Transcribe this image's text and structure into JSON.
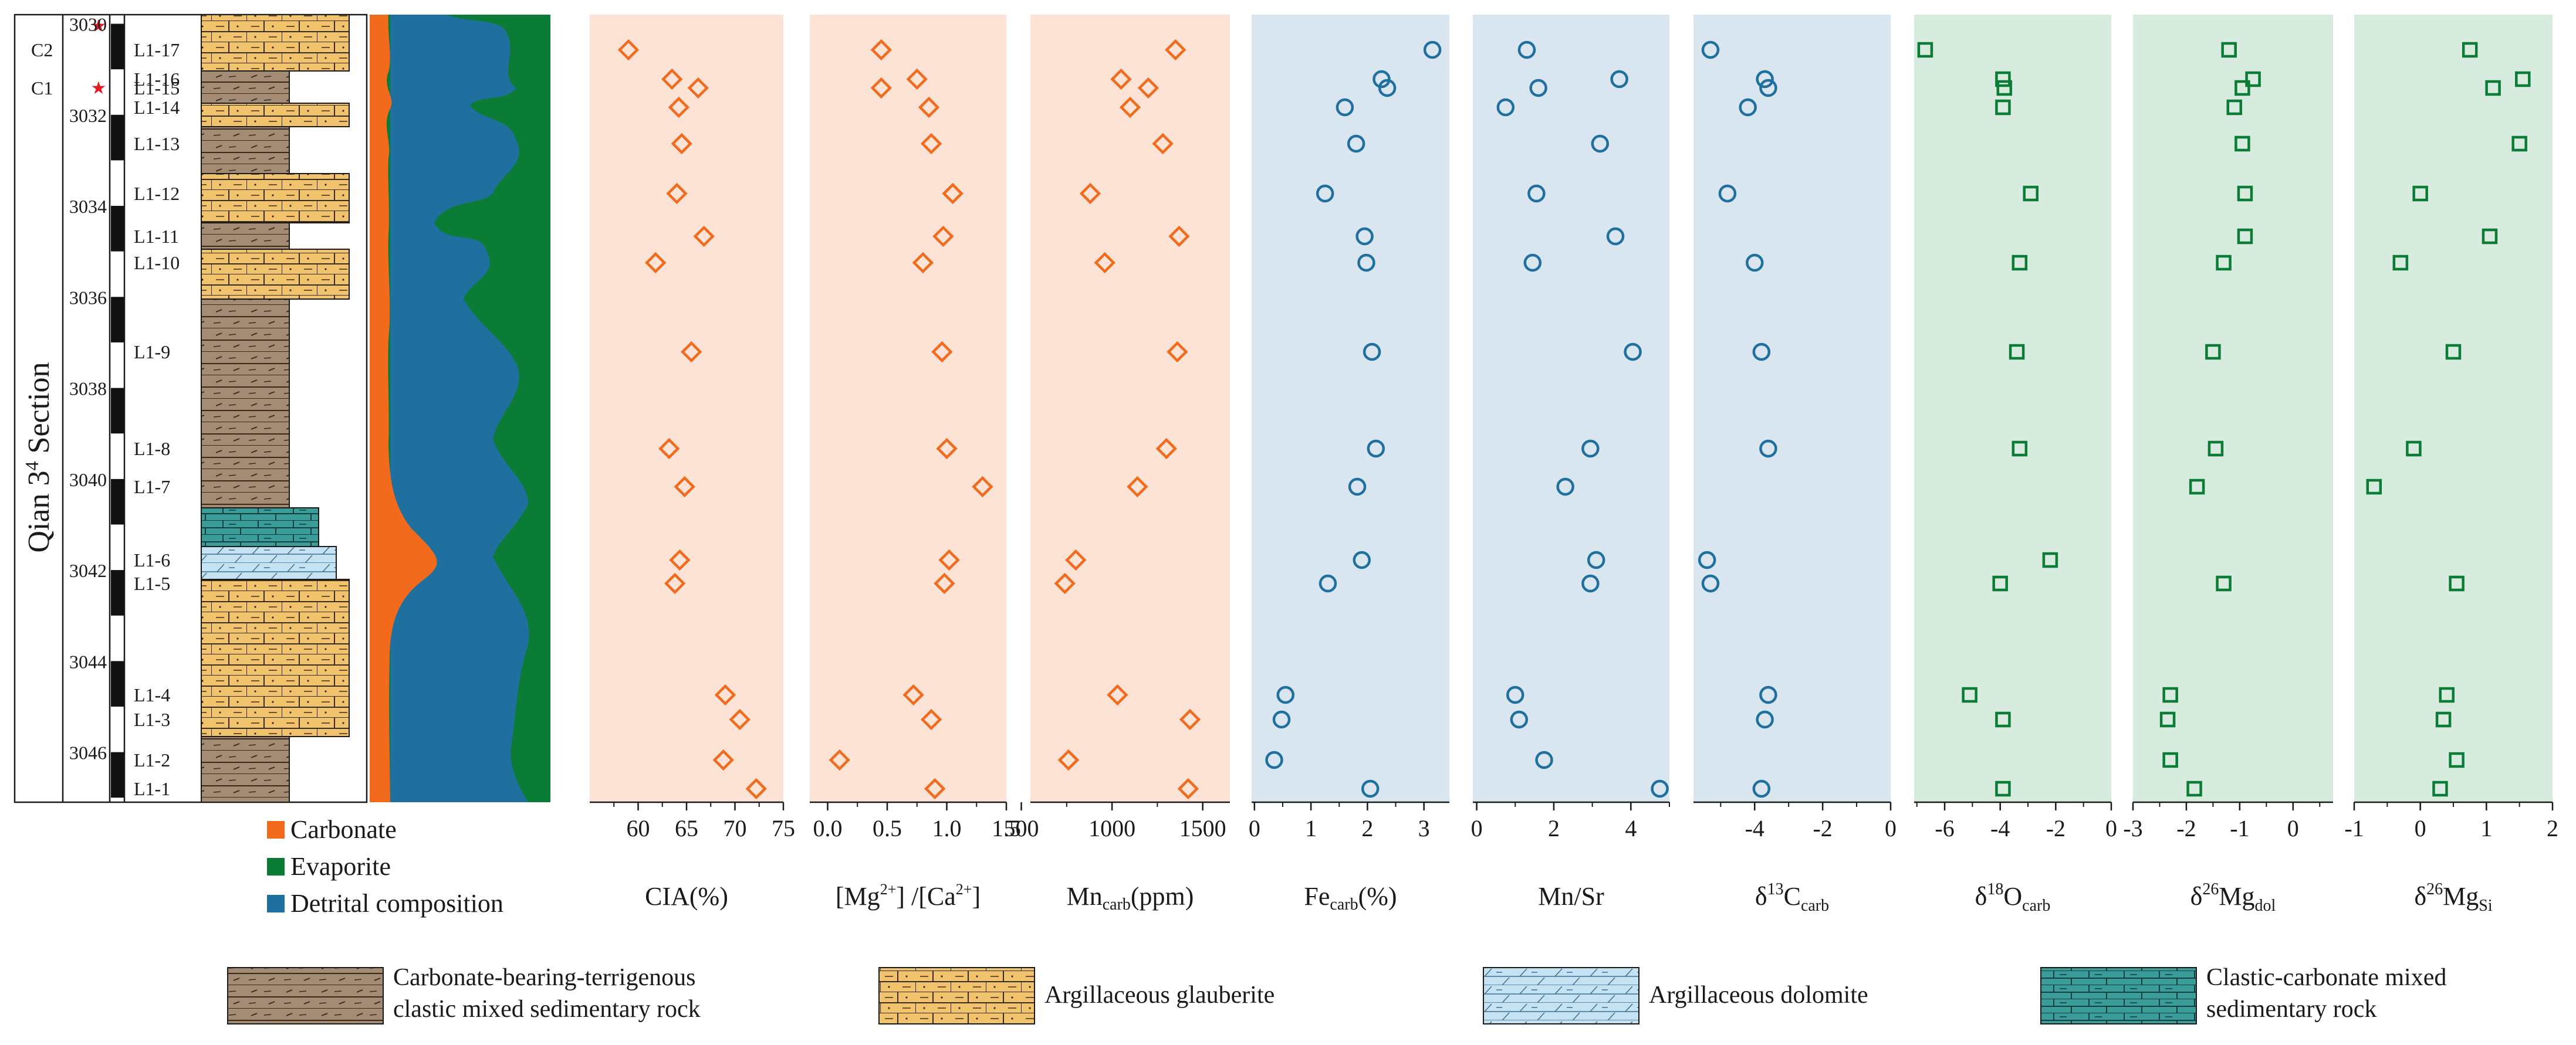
{
  "colors": {
    "orange": "#f26b1d",
    "green": "#0b7c35",
    "blue": "#1f6f9f",
    "panel_orange": "#fde3d6",
    "panel_blue": "#d9e6f0",
    "panel_green": "#d8ebdf",
    "brown": "#a48b74",
    "yellow": "#f1c36c",
    "lightblue": "#c5e2f2",
    "teal": "#3b9d9a"
  },
  "section": {
    "title": "Qian 3",
    "title_sup": "4",
    "title_suffix": " Section",
    "depth_labels": [
      "3030",
      "3032",
      "3034",
      "3036",
      "3038",
      "3040",
      "3042",
      "3044",
      "3046"
    ],
    "cycles": [
      "C2",
      "C1"
    ],
    "samples": [
      "L1-17",
      "L1-16",
      "L1-15",
      "L1-14",
      "L1-13",
      "L1-12",
      "L1-11",
      "L1-10",
      "L1-9",
      "L1-8",
      "L1-7",
      "L1-6",
      "L1-5",
      "L1-4",
      "L1-3",
      "L1-2",
      "L1-1"
    ]
  },
  "component_legend": [
    {
      "label": "Carbonate",
      "color_key": "orange"
    },
    {
      "label": "Evaporite",
      "color_key": "green"
    },
    {
      "label": "Detrital composition",
      "color_key": "blue"
    }
  ],
  "lithology_legend": [
    {
      "line1": "Carbonate-bearing-terrigenous",
      "line2": "clastic mixed sedimentary rock",
      "pattern": "brown"
    },
    {
      "line1": "Argillaceous glauberite",
      "line2": "",
      "pattern": "yellow"
    },
    {
      "line1": "Argillaceous dolomite",
      "line2": "",
      "pattern": "lightblue"
    },
    {
      "line1": "Clastic-carbonate mixed",
      "line2": "sedimentary rock",
      "pattern": "teal"
    }
  ],
  "chart_data": [
    {
      "type": "scatter",
      "name": "CIA",
      "title": "CIA(%)",
      "marker": "diamond",
      "color_key": "orange",
      "ticks": [
        "60",
        "65",
        "70",
        "75"
      ],
      "xlim": [
        55,
        75
      ],
      "samples": [
        "L1-17",
        "L1-16",
        "L1-15",
        "L1-14",
        "L1-13",
        "L1-12",
        "L1-11",
        "L1-10",
        "L1-9",
        "L1-8",
        "L1-7",
        "L1-6",
        "L1-5",
        "L1-4",
        "L1-3",
        "L1-2",
        "L1-1"
      ],
      "values": [
        59.0,
        63.5,
        66.2,
        64.2,
        64.5,
        64.0,
        66.8,
        61.8,
        65.5,
        63.2,
        64.8,
        64.3,
        63.8,
        69.0,
        70.5,
        68.8,
        72.2
      ]
    },
    {
      "type": "scatter",
      "name": "Mg/Ca",
      "title": "[Mg2+]/[Ca2+]",
      "marker": "diamond",
      "color_key": "orange",
      "ticks": [
        "0.0",
        "0.5",
        "1.0",
        "1.5"
      ],
      "xlim": [
        -0.15,
        1.5
      ],
      "samples": [
        "L1-17",
        "L1-16",
        "L1-15",
        "L1-14",
        "L1-13",
        "L1-12",
        "L1-11",
        "L1-10",
        "L1-9",
        "L1-8",
        "L1-7",
        "L1-6",
        "L1-5",
        "L1-4",
        "L1-3",
        "L1-2",
        "L1-1"
      ],
      "values": [
        0.45,
        0.75,
        0.45,
        0.85,
        0.87,
        1.05,
        0.97,
        0.8,
        0.96,
        1.0,
        1.3,
        1.02,
        0.98,
        0.72,
        0.87,
        0.1,
        0.9
      ]
    },
    {
      "type": "scatter",
      "name": "Mn carb",
      "title": "Mn",
      "title_sub": "carb",
      "title_tail": "(ppm)",
      "marker": "diamond",
      "color_key": "orange",
      "ticks": [
        "500",
        "1000",
        "1500"
      ],
      "xlim": [
        550,
        1650
      ],
      "samples": [
        "L1-17",
        "L1-16",
        "L1-15",
        "L1-14",
        "L1-13",
        "L1-12",
        "L1-11",
        "L1-10",
        "L1-9",
        "L1-8",
        "L1-7",
        "L1-6",
        "L1-5",
        "L1-4",
        "L1-3",
        "L1-2",
        "L1-1"
      ],
      "values": [
        1350,
        1050,
        1200,
        1100,
        1280,
        880,
        1370,
        960,
        1360,
        1300,
        1140,
        800,
        740,
        1030,
        1430,
        760,
        1420
      ]
    },
    {
      "type": "scatter",
      "name": "Fe carb",
      "title": "Fe",
      "title_sub": "carb",
      "title_tail": "(%)",
      "marker": "circle",
      "color_key": "blue",
      "ticks": [
        "0",
        "1",
        "2",
        "3"
      ],
      "xlim": [
        -0.05,
        3.45
      ],
      "samples": [
        "L1-17",
        "L1-16",
        "L1-15",
        "L1-14",
        "L1-13",
        "L1-12",
        "L1-11",
        "L1-10",
        "L1-9",
        "L1-8",
        "L1-7",
        "L1-6",
        "L1-5",
        "L1-4",
        "L1-3",
        "L1-2",
        "L1-1"
      ],
      "values": [
        3.15,
        2.25,
        2.35,
        1.6,
        1.8,
        1.25,
        1.95,
        1.98,
        2.08,
        2.15,
        1.82,
        1.9,
        1.3,
        0.55,
        0.48,
        0.35,
        2.05
      ]
    },
    {
      "type": "scatter",
      "name": "Mn/Sr",
      "title": "Mn/Sr",
      "marker": "circle",
      "color_key": "blue",
      "ticks": [
        "0",
        "2",
        "4"
      ],
      "xlim": [
        -0.1,
        5.0
      ],
      "samples": [
        "L1-17",
        "L1-16",
        "L1-15",
        "L1-14",
        "L1-13",
        "L1-12",
        "L1-11",
        "L1-10",
        "L1-9",
        "L1-8",
        "L1-7",
        "L1-6",
        "L1-5",
        "L1-4",
        "L1-3",
        "L1-2",
        "L1-1"
      ],
      "values": [
        1.3,
        3.7,
        1.6,
        0.75,
        3.2,
        1.55,
        3.6,
        1.45,
        4.05,
        2.95,
        2.3,
        3.1,
        2.95,
        1.0,
        1.1,
        1.75,
        4.75
      ]
    },
    {
      "type": "scatter",
      "name": "d13C carb",
      "title": "δ13Ccarb",
      "marker": "circle",
      "color_key": "blue",
      "ticks": [
        "-4",
        "-2",
        "0"
      ],
      "xlim": [
        -5.8,
        0
      ],
      "samples": [
        "L1-17",
        "L1-16",
        "L1-15",
        "L1-14",
        "L1-13",
        "L1-12",
        "L1-11",
        "L1-10",
        "L1-9",
        "L1-8",
        "L1-7",
        "L1-6",
        "L1-5",
        "L1-4",
        "L1-3",
        "L1-2",
        "L1-1"
      ],
      "values": [
        -5.3,
        -3.7,
        -3.6,
        -4.2,
        null,
        -4.8,
        null,
        -4.0,
        -3.8,
        -3.6,
        null,
        -5.4,
        -5.3,
        -3.6,
        -3.7,
        null,
        -3.8
      ]
    },
    {
      "type": "scatter",
      "name": "d18O carb",
      "title": "δ18Ocarb",
      "marker": "square",
      "color_key": "green",
      "ticks": [
        "-6",
        "-4",
        "-2",
        "0"
      ],
      "xlim": [
        -7.1,
        0
      ],
      "samples": [
        "L1-17",
        "L1-16",
        "L1-15",
        "L1-14",
        "L1-13",
        "L1-12",
        "L1-11",
        "L1-10",
        "L1-9",
        "L1-8",
        "L1-7",
        "L1-6",
        "L1-5",
        "L1-4",
        "L1-3",
        "L1-2",
        "L1-1"
      ],
      "values": [
        -6.7,
        -3.9,
        -3.85,
        -3.9,
        null,
        -2.9,
        null,
        -3.3,
        -3.4,
        -3.3,
        null,
        -2.2,
        -4.0,
        -5.1,
        -3.9,
        null,
        -3.9
      ]
    },
    {
      "type": "scatter",
      "name": "d26Mg dol",
      "title": "δ26Mgdol",
      "marker": "square",
      "color_key": "green",
      "ticks": [
        "-3",
        "-2",
        "-1",
        "0"
      ],
      "xlim": [
        -3,
        0.75
      ],
      "samples": [
        "L1-17",
        "L1-16",
        "L1-15",
        "L1-14",
        "L1-13",
        "L1-12",
        "L1-11",
        "L1-10",
        "L1-9",
        "L1-8",
        "L1-7",
        "L1-6",
        "L1-5",
        "L1-4",
        "L1-3",
        "L1-2",
        "L1-1"
      ],
      "values": [
        -1.2,
        -0.75,
        -0.95,
        -1.1,
        -0.95,
        -0.9,
        -0.9,
        -1.3,
        -1.5,
        -1.45,
        -1.8,
        null,
        -1.3,
        -2.3,
        -2.35,
        -2.3,
        -1.85
      ]
    },
    {
      "type": "scatter",
      "name": "d26Mg Si",
      "title": "δ26MgSi",
      "marker": "square",
      "color_key": "green",
      "ticks": [
        "-1",
        "0",
        "1",
        "2"
      ],
      "xlim": [
        -1,
        2
      ],
      "samples": [
        "L1-17",
        "L1-16",
        "L1-15",
        "L1-14",
        "L1-13",
        "L1-12",
        "L1-11",
        "L1-10",
        "L1-9",
        "L1-8",
        "L1-7",
        "L1-6",
        "L1-5",
        "L1-4",
        "L1-3",
        "L1-2",
        "L1-1"
      ],
      "values": [
        0.75,
        1.55,
        1.1,
        null,
        1.5,
        0.0,
        1.05,
        -0.3,
        0.5,
        -0.1,
        -0.7,
        null,
        0.55,
        0.4,
        0.35,
        0.55,
        0.3
      ]
    }
  ]
}
